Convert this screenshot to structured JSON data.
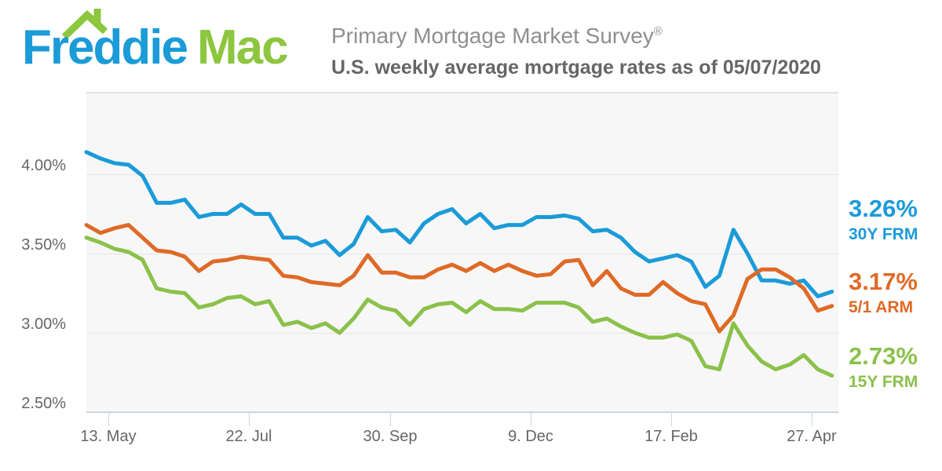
{
  "header": {
    "logo": {
      "word1": "Freddie",
      "word2": "Mac",
      "blue": "#1b9bd8",
      "green": "#8dc63f"
    },
    "title": "Primary Mortgage Market Survey",
    "title_reg": "®",
    "subtitle": "U.S. weekly average mortgage rates as of 05/07/2020"
  },
  "chart_data": {
    "type": "line",
    "frequency": "weekly",
    "title": "Primary Mortgage Market Survey",
    "subtitle": "U.S. weekly average mortgage rates as of 05/07/2020",
    "ylim": [
      2.5,
      4.51
    ],
    "grid": "horizontal",
    "y_tick_labels": [
      "4.00%",
      "3.50%",
      "3.00%",
      "2.50%"
    ],
    "y_ticks": [
      4.0,
      3.5,
      3.0,
      2.5
    ],
    "x_tick_labels": [
      "13. May",
      "22. Jul",
      "30. Sep",
      "9. Dec",
      "17. Feb",
      "27. Apr"
    ],
    "x_tick_weeks": [
      1.571,
      11.571,
      21.571,
      31.571,
      41.571,
      51.571
    ],
    "series": [
      {
        "id": "30y-frm",
        "name": "30Y FRM",
        "last_label": "3.26%",
        "last_value": 3.26,
        "color": "#1b9bd8",
        "values": [
          4.14,
          4.1,
          4.07,
          4.06,
          3.99,
          3.82,
          3.82,
          3.84,
          3.73,
          3.75,
          3.75,
          3.81,
          3.75,
          3.75,
          3.6,
          3.6,
          3.55,
          3.58,
          3.49,
          3.56,
          3.73,
          3.64,
          3.65,
          3.57,
          3.69,
          3.75,
          3.78,
          3.69,
          3.75,
          3.66,
          3.68,
          3.68,
          3.73,
          3.73,
          3.74,
          3.72,
          3.64,
          3.65,
          3.6,
          3.51,
          3.45,
          3.47,
          3.49,
          3.45,
          3.29,
          3.36,
          3.65,
          3.5,
          3.33,
          3.33,
          3.31,
          3.33,
          3.23,
          3.26
        ]
      },
      {
        "id": "5-1-arm",
        "name": "5/1 ARM",
        "last_label": "3.17%",
        "last_value": 3.17,
        "color": "#df6a26",
        "values": [
          3.68,
          3.63,
          3.66,
          3.68,
          3.6,
          3.52,
          3.51,
          3.48,
          3.39,
          3.45,
          3.46,
          3.48,
          3.47,
          3.46,
          3.36,
          3.35,
          3.32,
          3.31,
          3.3,
          3.36,
          3.49,
          3.38,
          3.38,
          3.35,
          3.35,
          3.4,
          3.43,
          3.39,
          3.44,
          3.39,
          3.43,
          3.39,
          3.36,
          3.37,
          3.45,
          3.46,
          3.3,
          3.39,
          3.28,
          3.24,
          3.24,
          3.32,
          3.25,
          3.2,
          3.18,
          3.01,
          3.11,
          3.34,
          3.4,
          3.4,
          3.35,
          3.28,
          3.14,
          3.17
        ]
      },
      {
        "id": "15y-frm",
        "name": "15Y FRM",
        "last_label": "2.73%",
        "last_value": 2.73,
        "color": "#8bc14b",
        "values": [
          3.6,
          3.57,
          3.53,
          3.51,
          3.46,
          3.28,
          3.26,
          3.25,
          3.16,
          3.18,
          3.22,
          3.23,
          3.18,
          3.2,
          3.05,
          3.07,
          3.03,
          3.06,
          3.0,
          3.09,
          3.21,
          3.16,
          3.14,
          3.05,
          3.15,
          3.18,
          3.19,
          3.13,
          3.2,
          3.15,
          3.15,
          3.14,
          3.19,
          3.19,
          3.19,
          3.16,
          3.07,
          3.09,
          3.04,
          3.0,
          2.97,
          2.97,
          2.99,
          2.95,
          2.79,
          2.77,
          3.06,
          2.92,
          2.82,
          2.77,
          2.8,
          2.86,
          2.77,
          2.73
        ]
      }
    ]
  }
}
